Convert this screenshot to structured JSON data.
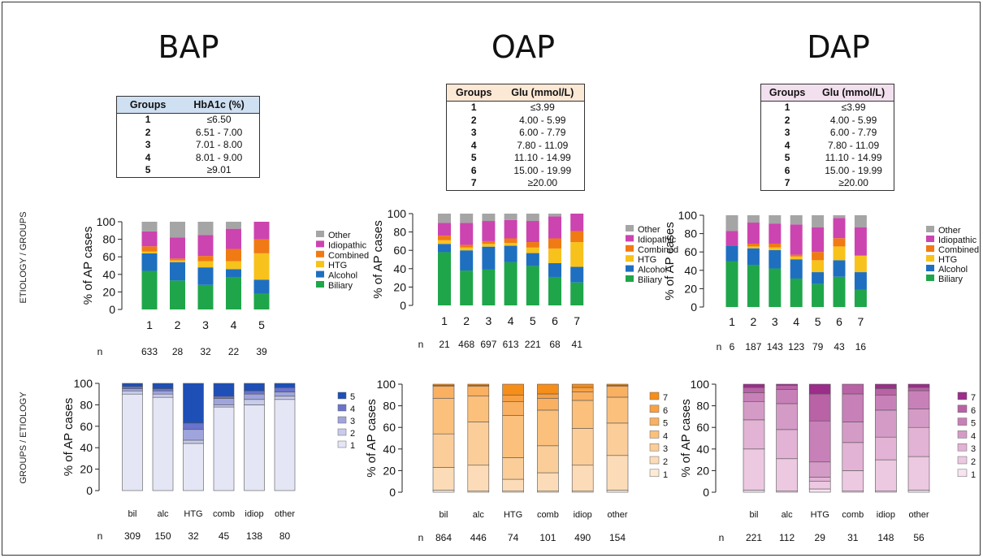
{
  "row_labels": {
    "top": "ETIOLOGY / GROUPS",
    "bottom": "GROUPS / ETIOLOGY"
  },
  "panels": [
    {
      "title": "BAP",
      "table": {
        "headers": [
          "Groups",
          "HbA1c (%)"
        ],
        "header_color": "#cfe0f2",
        "rows": [
          [
            "1",
            "≤6.50"
          ],
          [
            "2",
            "6.51 - 7.00"
          ],
          [
            "3",
            "7.01 - 8.00"
          ],
          [
            "4",
            "8.01 - 9.00"
          ],
          [
            "5",
            "≥9.01"
          ]
        ]
      }
    },
    {
      "title": "OAP",
      "table": {
        "headers": [
          "Groups",
          "Glu (mmol/L)"
        ],
        "header_color": "#fbe9d6",
        "rows": [
          [
            "1",
            "≤3.99"
          ],
          [
            "2",
            "4.00 - 5.99"
          ],
          [
            "3",
            "6.00 - 7.79"
          ],
          [
            "4",
            "7.80 - 11.09"
          ],
          [
            "5",
            "11.10 - 14.99"
          ],
          [
            "6",
            "15.00 - 19.99"
          ],
          [
            "7",
            "≥20.00"
          ]
        ]
      }
    },
    {
      "title": "DAP",
      "table": {
        "headers": [
          "Groups",
          "Glu (mmol/L)"
        ],
        "header_color": "#f3e0ef",
        "rows": [
          [
            "1",
            "≤3.99"
          ],
          [
            "2",
            "4.00 - 5.99"
          ],
          [
            "3",
            "6.00 - 7.79"
          ],
          [
            "4",
            "7.80 - 11.09"
          ],
          [
            "5",
            "11.10 - 14.99"
          ],
          [
            "6",
            "15.00 - 19.99"
          ],
          [
            "7",
            "≥20.00"
          ]
        ]
      }
    }
  ],
  "colors": {
    "etiology": {
      "Biliary": "#1fa64a",
      "Alcohol": "#1f6fc0",
      "HTG": "#f7c21c",
      "Combined": "#f07a14",
      "Idiopathic": "#cc44b0",
      "Other": "#a5a5a5"
    },
    "bap_groups": [
      "#e4e6f6",
      "#c8ccec",
      "#9fa5dc",
      "#6a74cc",
      "#1d4fb6"
    ],
    "oap_groups": [
      "#fdebd6",
      "#fcdcb8",
      "#fbcd99",
      "#fac07c",
      "#f9b061",
      "#f8a044",
      "#f68e1a"
    ],
    "dap_groups": [
      "#f6e4f0",
      "#ecc8e1",
      "#e2b3d4",
      "#d59bc7",
      "#c880b8",
      "#b962a6",
      "#9c2d8b"
    ]
  },
  "chart_data": [
    {
      "type": "bar",
      "stacked": true,
      "panel": "BAP",
      "row": "top",
      "ylabel": "% of AP cases",
      "ylim": [
        0,
        100
      ],
      "yticks": [
        0,
        20,
        40,
        60,
        80,
        100
      ],
      "categories": [
        "1",
        "2",
        "3",
        "4",
        "5"
      ],
      "n_label": "n",
      "n": [
        "633",
        "28",
        "32",
        "22",
        "39"
      ],
      "legend": [
        "Other",
        "Idiopathic",
        "Combined",
        "HTG",
        "Alcohol",
        "Biliary"
      ],
      "series": [
        {
          "name": "Biliary",
          "values": [
            44,
            33,
            28,
            37,
            18
          ]
        },
        {
          "name": "Alcohol",
          "values": [
            20,
            21,
            20,
            9,
            16
          ]
        },
        {
          "name": "HTG",
          "values": [
            2,
            2,
            7,
            9,
            30
          ]
        },
        {
          "name": "Combined",
          "values": [
            6,
            2,
            6,
            14,
            16
          ]
        },
        {
          "name": "Idiopathic",
          "values": [
            17,
            24,
            24,
            23,
            20
          ]
        },
        {
          "name": "Other",
          "values": [
            11,
            18,
            15,
            8,
            0
          ]
        }
      ]
    },
    {
      "type": "bar",
      "stacked": true,
      "panel": "OAP",
      "row": "top",
      "ylabel": "% of AP cases",
      "ylim": [
        0,
        100
      ],
      "yticks": [
        0,
        20,
        40,
        60,
        80,
        100
      ],
      "categories": [
        "1",
        "2",
        "3",
        "4",
        "5",
        "6",
        "7"
      ],
      "n_label": "n",
      "n": [
        "21",
        "468",
        "697",
        "613",
        "221",
        "68",
        "41"
      ],
      "legend": [
        "Other",
        "Idiopathic",
        "Combined",
        "HTG",
        "Alcohol",
        "Biliary"
      ],
      "series": [
        {
          "name": "Biliary",
          "values": [
            58,
            38,
            39,
            47,
            43,
            31,
            25
          ]
        },
        {
          "name": "Alcohol",
          "values": [
            9,
            22,
            25,
            18,
            14,
            15,
            17
          ]
        },
        {
          "name": "HTG",
          "values": [
            4,
            3,
            3,
            3,
            6,
            16,
            27
          ]
        },
        {
          "name": "Combined",
          "values": [
            5,
            3,
            3,
            5,
            6,
            11,
            12
          ]
        },
        {
          "name": "Idiopathic",
          "values": [
            14,
            24,
            22,
            20,
            23,
            24,
            19
          ]
        },
        {
          "name": "Other",
          "values": [
            10,
            10,
            8,
            7,
            8,
            3,
            0
          ]
        }
      ]
    },
    {
      "type": "bar",
      "stacked": true,
      "panel": "DAP",
      "row": "top",
      "ylabel": "% of AP cases",
      "ylim": [
        0,
        100
      ],
      "yticks": [
        0,
        20,
        40,
        60,
        80,
        100
      ],
      "categories": [
        "1",
        "2",
        "3",
        "4",
        "5",
        "6",
        "7"
      ],
      "n_label": "n",
      "n": [
        "6",
        "187",
        "143",
        "123",
        "79",
        "43",
        "16"
      ],
      "legend": [
        "Other",
        "Idiopathic",
        "Combined",
        "HTG",
        "Alcohol",
        "Biliary"
      ],
      "series": [
        {
          "name": "Biliary",
          "values": [
            50,
            46,
            42,
            31,
            25,
            33,
            19
          ]
        },
        {
          "name": "Alcohol",
          "values": [
            17,
            18,
            20,
            21,
            13,
            18,
            19
          ]
        },
        {
          "name": "HTG",
          "values": [
            0,
            2,
            3,
            3,
            13,
            15,
            18
          ]
        },
        {
          "name": "Combined",
          "values": [
            0,
            3,
            4,
            2,
            9,
            9,
            0
          ]
        },
        {
          "name": "Idiopathic",
          "values": [
            16,
            23,
            22,
            33,
            27,
            22,
            31
          ]
        },
        {
          "name": "Other",
          "values": [
            17,
            8,
            9,
            10,
            13,
            3,
            13
          ]
        }
      ]
    },
    {
      "type": "bar",
      "stacked": true,
      "panel": "BAP",
      "row": "bottom",
      "ylabel": "% of AP cases",
      "ylim": [
        0,
        100
      ],
      "yticks": [
        0,
        20,
        40,
        60,
        80,
        100
      ],
      "categories": [
        "bil",
        "alc",
        "HTG",
        "comb",
        "idiop",
        "other"
      ],
      "n_label": "n",
      "n": [
        "309",
        "150",
        "32",
        "45",
        "138",
        "80"
      ],
      "legend": [
        "5",
        "4",
        "3",
        "2",
        "1"
      ],
      "series": [
        {
          "name": "1",
          "values": [
            90,
            87,
            44,
            78,
            80,
            85
          ]
        },
        {
          "name": "2",
          "values": [
            3,
            3,
            3,
            2,
            5,
            3
          ]
        },
        {
          "name": "3",
          "values": [
            2,
            3,
            10,
            6,
            5,
            4
          ]
        },
        {
          "name": "4",
          "values": [
            2,
            2,
            6,
            2,
            3,
            4
          ]
        },
        {
          "name": "5",
          "values": [
            3,
            5,
            37,
            12,
            7,
            4
          ]
        }
      ]
    },
    {
      "type": "bar",
      "stacked": true,
      "panel": "OAP",
      "row": "bottom",
      "ylabel": "% of AP cases",
      "ylim": [
        0,
        100
      ],
      "yticks": [
        0,
        20,
        40,
        60,
        80,
        100
      ],
      "categories": [
        "bil",
        "alc",
        "HTG",
        "comb",
        "idiop",
        "other"
      ],
      "n_label": "n",
      "n": [
        "864",
        "446",
        "74",
        "101",
        "490",
        "154"
      ],
      "legend": [
        "7",
        "6",
        "5",
        "4",
        "3",
        "2",
        "1"
      ],
      "series": [
        {
          "name": "1",
          "values": [
            2,
            1,
            1,
            1,
            1,
            2
          ]
        },
        {
          "name": "2",
          "values": [
            21,
            24,
            11,
            17,
            24,
            32
          ]
        },
        {
          "name": "3",
          "values": [
            31,
            40,
            20,
            25,
            34,
            30
          ]
        },
        {
          "name": "4",
          "values": [
            33,
            24,
            39,
            33,
            26,
            24
          ]
        },
        {
          "name": "5",
          "values": [
            11,
            9,
            13,
            11,
            8,
            10
          ]
        },
        {
          "name": "6",
          "values": [
            1,
            1,
            6,
            4,
            4,
            1
          ]
        },
        {
          "name": "7",
          "values": [
            1,
            1,
            10,
            9,
            3,
            1
          ]
        }
      ]
    },
    {
      "type": "bar",
      "stacked": true,
      "panel": "DAP",
      "row": "bottom",
      "ylabel": "% of AP cases",
      "ylim": [
        0,
        100
      ],
      "yticks": [
        0,
        20,
        40,
        60,
        80,
        100
      ],
      "categories": [
        "bil",
        "alc",
        "HTG",
        "comb",
        "idiop",
        "other"
      ],
      "n_label": "n",
      "n": [
        "221",
        "112",
        "29",
        "31",
        "148",
        "56"
      ],
      "legend": [
        "7",
        "6",
        "5",
        "4",
        "3",
        "2",
        "1"
      ],
      "series": [
        {
          "name": "1",
          "values": [
            2,
            1,
            3,
            1,
            1,
            2
          ]
        },
        {
          "name": "2",
          "values": [
            38,
            30,
            7,
            19,
            29,
            31
          ]
        },
        {
          "name": "3",
          "values": [
            27,
            27,
            4,
            26,
            21,
            27
          ]
        },
        {
          "name": "4",
          "values": [
            17,
            24,
            14,
            19,
            25,
            17
          ]
        },
        {
          "name": "5",
          "values": [
            8,
            13,
            38,
            26,
            14,
            17
          ]
        },
        {
          "name": "6",
          "values": [
            5,
            4,
            25,
            9,
            6,
            3
          ]
        },
        {
          "name": "7",
          "values": [
            3,
            1,
            9,
            0,
            4,
            3
          ]
        }
      ]
    }
  ]
}
